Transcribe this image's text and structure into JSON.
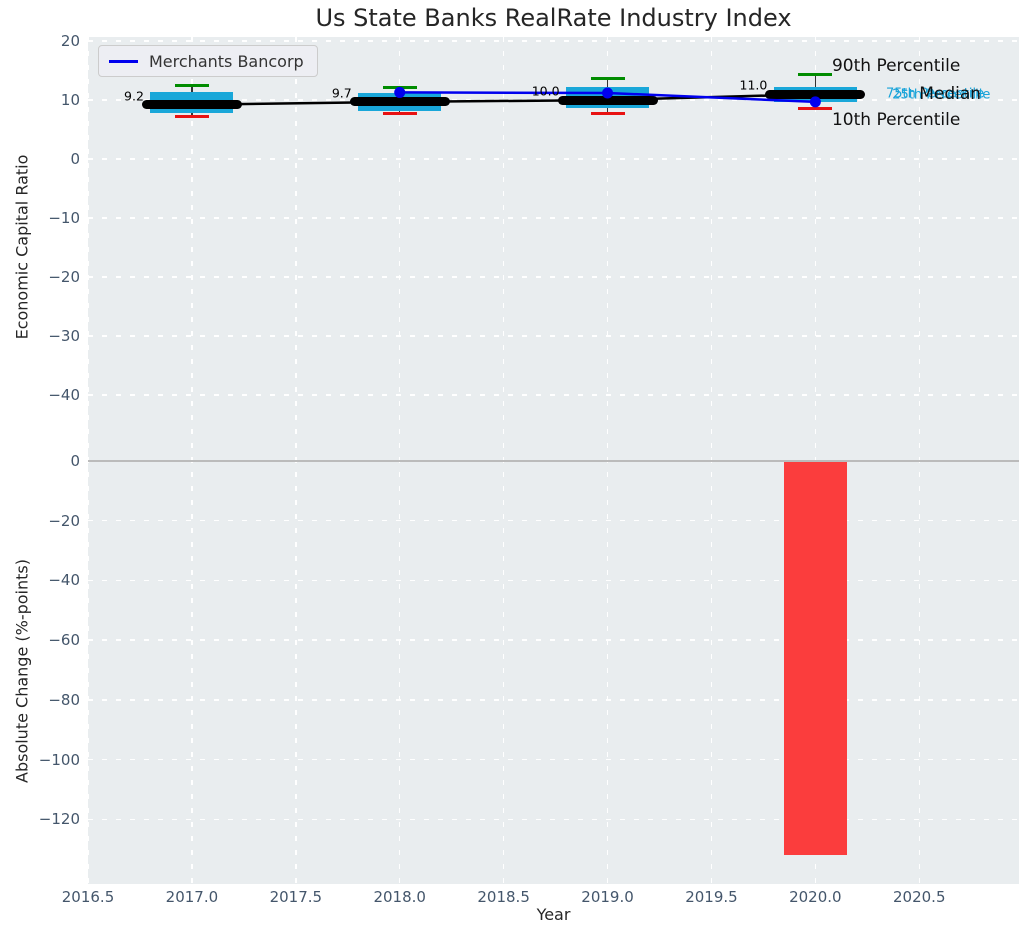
{
  "figure": {
    "title": "Us State Banks RealRate Industry Index"
  },
  "chart_data": {
    "type": "box",
    "title": "Us State Banks RealRate Industry Index",
    "xlabel": "Year",
    "xlim": [
      2016.5,
      2020.98
    ],
    "xticks": [
      2016.5,
      2017.0,
      2017.5,
      2018.0,
      2018.5,
      2019.0,
      2019.5,
      2020.0,
      2020.5
    ],
    "xtick_labels": [
      "2016.5",
      "2017.0",
      "2017.5",
      "2018.0",
      "2018.5",
      "2019.0",
      "2019.5",
      "2020.0",
      "2020.5"
    ],
    "grid": true,
    "legend": {
      "label": "Merchants Bancorp",
      "position": "upper left"
    },
    "top_panel": {
      "ylabel": "Economic Capital Ratio",
      "ylim": [
        -50.7,
        20.7
      ],
      "yticks": [
        20,
        10,
        0,
        -10,
        -20,
        -30,
        -40
      ],
      "ytick_labels": [
        "20",
        "10",
        "0",
        "−10",
        "−20",
        "−30",
        "−40"
      ],
      "years": [
        2017,
        2018,
        2019,
        2020
      ],
      "boxplot": {
        "median": [
          9.2,
          9.7,
          10.0,
          11.0
        ],
        "q25": [
          7.8,
          8.1,
          8.6,
          9.7
        ],
        "q75": [
          11.3,
          11.2,
          12.2,
          12.2
        ],
        "p10": [
          7.3,
          7.8,
          7.8,
          8.6
        ],
        "p90": [
          12.4,
          12.2,
          13.7,
          14.4
        ],
        "box_width": 0.4,
        "box_color": "#19a7d9",
        "p90_cap_color": "#008c00",
        "p10_cap_color": "#e81212",
        "median_color": "#000000",
        "stem_color": "#333333"
      },
      "median_labels": [
        "9.2",
        "9.7",
        "10.0",
        "11.0"
      ],
      "company_line": {
        "name": "Merchants Bancorp",
        "color": "#0000ee",
        "x": [
          2018,
          2019,
          2020
        ],
        "y": [
          11.3,
          11.2,
          9.7
        ]
      },
      "annotations": [
        {
          "text": "75th Percentile",
          "x": 2020.34,
          "y": 11.1,
          "color": "#17a3d9",
          "size": 13
        },
        {
          "text": "25th Percentile",
          "x": 2020.37,
          "y": 10.9,
          "color": "#17a3d9",
          "size": 13
        },
        {
          "text": "90th Percentile",
          "x": 2020.08,
          "y": 15.8,
          "color": "#111111",
          "size": 17
        },
        {
          "text": "Median",
          "x": 2020.5,
          "y": 11.0,
          "color": "#111111",
          "size": 17
        },
        {
          "text": "10th Percentile",
          "x": 2020.08,
          "y": 6.6,
          "color": "#111111",
          "size": 17
        }
      ]
    },
    "bottom_panel": {
      "ylabel": "Absolute Change (%-points)",
      "ylim": [
        -141.6,
        1.0
      ],
      "yticks": [
        0,
        -20,
        -40,
        -60,
        -80,
        -100,
        -120
      ],
      "ytick_labels": [
        "0",
        "−20",
        "−40",
        "−60",
        "−80",
        "−100",
        "−120"
      ],
      "bars": [
        {
          "year": 2020,
          "value": -132,
          "width": 0.3,
          "color": "#fb3d3d"
        }
      ],
      "zero_line_color": "#bbbbbb"
    },
    "style": {
      "axes_bg": "#e9edef",
      "grid_color": "#ffffff",
      "tick_color": "#44566b",
      "text_color": "#262626"
    }
  }
}
